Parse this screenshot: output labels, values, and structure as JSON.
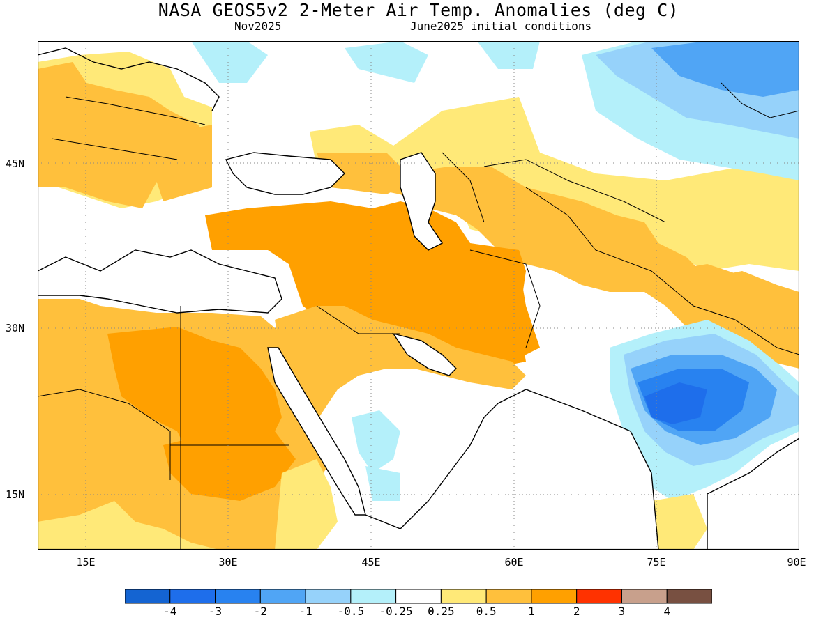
{
  "title": "NASA_GEOS5v2 2-Meter Air Temp. Anomalies (deg C)",
  "subtitle_left": "Nov2025",
  "subtitle_right": "June2025 initial conditions",
  "lat_labels": [
    "45N",
    "30N",
    "15N"
  ],
  "lon_labels": [
    "15E",
    "30E",
    "45E",
    "60E",
    "75E",
    "90E"
  ],
  "extent": {
    "lon": [
      10,
      90
    ],
    "lat": [
      10,
      55
    ]
  },
  "legend": {
    "colors": [
      "#1464d2",
      "#1e6eeb",
      "#2882f0",
      "#50a5f5",
      "#96d2fa",
      "#b4f0fa",
      "#ffffff",
      "#ffe978",
      "#ffc03c",
      "#ffa000",
      "#ff3200",
      "#c8a08c",
      "#785041"
    ],
    "ticks": [
      "-4",
      "-3",
      "-2",
      "-1",
      "-0.5",
      "-0.25",
      "0.25",
      "0.5",
      "1",
      "2",
      "3",
      "4"
    ]
  }
}
